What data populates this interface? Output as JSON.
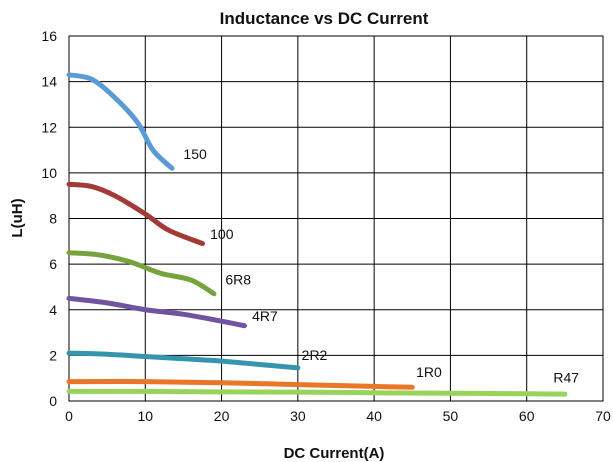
{
  "chart_data": {
    "type": "line",
    "title": "Inductance vs DC Current",
    "xlabel": "DC Current(A)",
    "ylabel": "L(uH)",
    "xlim": [
      0,
      70
    ],
    "ylim": [
      0,
      16
    ],
    "x_ticks": [
      0,
      10,
      20,
      30,
      40,
      50,
      60,
      70
    ],
    "y_ticks": [
      0,
      2,
      4,
      6,
      8,
      10,
      12,
      14,
      16
    ],
    "grid": true,
    "series": [
      {
        "name": "150",
        "color": "#5b9bd5",
        "points": [
          [
            0,
            14.3
          ],
          [
            3,
            14.1
          ],
          [
            6,
            13.3
          ],
          [
            9,
            12.2
          ],
          [
            11,
            11.0
          ],
          [
            13.5,
            10.2
          ]
        ],
        "label_at": [
          15,
          10.6
        ]
      },
      {
        "name": "100",
        "color": "#a33a36",
        "points": [
          [
            0,
            9.5
          ],
          [
            3,
            9.4
          ],
          [
            6,
            9.0
          ],
          [
            10,
            8.2
          ],
          [
            13,
            7.5
          ],
          [
            17.5,
            6.9
          ]
        ],
        "label_at": [
          18.5,
          7.1
        ]
      },
      {
        "name": "6R8",
        "color": "#77a33e",
        "points": [
          [
            0,
            6.5
          ],
          [
            4,
            6.4
          ],
          [
            8,
            6.1
          ],
          [
            12,
            5.6
          ],
          [
            16,
            5.3
          ],
          [
            19,
            4.7
          ]
        ],
        "label_at": [
          20.5,
          5.1
        ]
      },
      {
        "name": "4R7",
        "color": "#7154a0",
        "points": [
          [
            0,
            4.5
          ],
          [
            5,
            4.3
          ],
          [
            10,
            4.0
          ],
          [
            15,
            3.8
          ],
          [
            20,
            3.5
          ],
          [
            23,
            3.3
          ]
        ],
        "label_at": [
          24,
          3.5
        ]
      },
      {
        "name": "2R2",
        "color": "#3595ac",
        "points": [
          [
            0,
            2.1
          ],
          [
            5,
            2.05
          ],
          [
            10,
            1.95
          ],
          [
            15,
            1.85
          ],
          [
            20,
            1.75
          ],
          [
            25,
            1.6
          ],
          [
            30,
            1.45
          ]
        ],
        "label_at": [
          30.5,
          1.8
        ]
      },
      {
        "name": "1R0",
        "color": "#eb7628",
        "points": [
          [
            0,
            0.85
          ],
          [
            10,
            0.85
          ],
          [
            20,
            0.8
          ],
          [
            30,
            0.72
          ],
          [
            40,
            0.64
          ],
          [
            45,
            0.6
          ]
        ],
        "label_at": [
          45.5,
          1.05
        ]
      },
      {
        "name": "R47",
        "color": "#99d35c",
        "points": [
          [
            0,
            0.42
          ],
          [
            10,
            0.42
          ],
          [
            20,
            0.4
          ],
          [
            30,
            0.39
          ],
          [
            40,
            0.36
          ],
          [
            50,
            0.34
          ],
          [
            60,
            0.32
          ],
          [
            65,
            0.3
          ]
        ],
        "label_at": [
          63.5,
          0.82
        ]
      }
    ]
  }
}
